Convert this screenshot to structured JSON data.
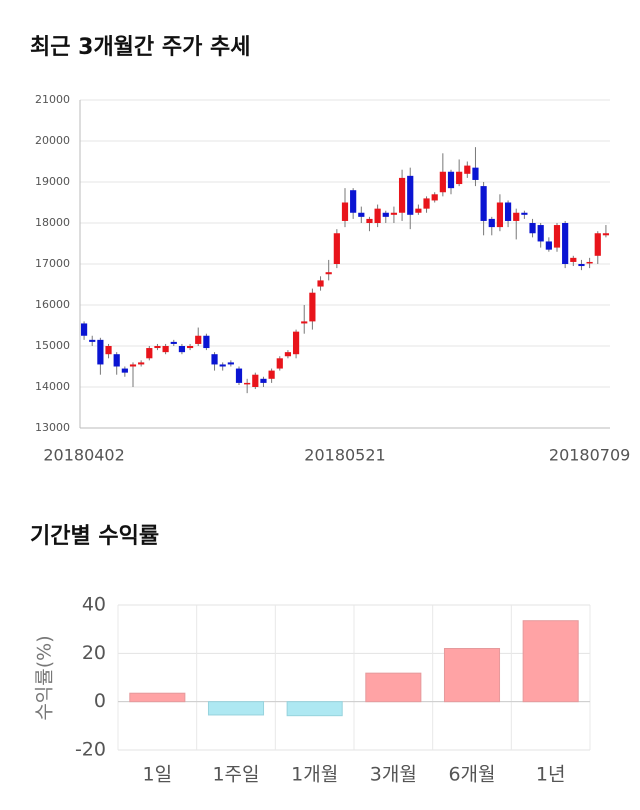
{
  "chart_data": [
    {
      "type": "candlestick",
      "title": "최근 3개월간 주가 추세",
      "categories": [
        "20180402",
        null,
        null,
        null,
        null,
        null,
        null,
        null,
        null,
        null,
        null,
        null,
        null,
        null,
        null,
        null,
        null,
        null,
        null,
        null,
        null,
        null,
        null,
        null,
        null,
        null,
        null,
        null,
        null,
        null,
        null,
        null,
        "20180521",
        null,
        null,
        null,
        null,
        null,
        null,
        null,
        null,
        null,
        null,
        null,
        null,
        null,
        null,
        null,
        null,
        null,
        null,
        null,
        null,
        null,
        null,
        null,
        null,
        null,
        null,
        null,
        null,
        null,
        "20180709",
        null,
        null
      ],
      "open": [
        15550,
        15150,
        15150,
        14800,
        14800,
        14450,
        14500,
        14550,
        14700,
        14950,
        14850,
        15100,
        15000,
        14950,
        15050,
        15250,
        14800,
        14550,
        14600,
        14450,
        14100,
        14000,
        14200,
        14200,
        14450,
        14750,
        14800,
        15550,
        15600,
        16450,
        16750,
        17000,
        18050,
        18800,
        18250,
        18000,
        18000,
        18250,
        18200,
        18250,
        19150,
        18250,
        18350,
        18550,
        18750,
        19250,
        18950,
        19200,
        19350,
        18900,
        18100,
        17900,
        18500,
        18050,
        18250,
        18000,
        17950,
        17550,
        17400,
        18000,
        17050,
        17000,
        17050,
        17200,
        17700
      ],
      "high": [
        15600,
        15250,
        15200,
        15050,
        14850,
        14500,
        14600,
        14650,
        15000,
        15050,
        15050,
        15150,
        15050,
        15050,
        15450,
        15300,
        14850,
        14600,
        14650,
        14500,
        14200,
        14350,
        14250,
        14450,
        14750,
        14900,
        15400,
        16000,
        16400,
        16700,
        17100,
        17850,
        18850,
        18850,
        18400,
        18150,
        18450,
        18300,
        18400,
        19300,
        19350,
        18450,
        18650,
        18750,
        19700,
        19300,
        19550,
        19500,
        19850,
        19000,
        18150,
        18700,
        18550,
        18350,
        18300,
        18100,
        18000,
        17650,
        18000,
        18050,
        17200,
        17100,
        17150,
        17800,
        17950
      ],
      "low": [
        15150,
        15000,
        14300,
        14700,
        14300,
        14250,
        14000,
        14500,
        14650,
        14900,
        14800,
        15000,
        14800,
        14900,
        15000,
        14900,
        14400,
        14400,
        14500,
        14050,
        13850,
        13950,
        14000,
        14100,
        14400,
        14700,
        14700,
        15300,
        15400,
        16350,
        16600,
        16900,
        17900,
        18100,
        18000,
        17800,
        17900,
        18000,
        18000,
        18050,
        17850,
        18200,
        18250,
        18500,
        18650,
        18700,
        18900,
        19100,
        18900,
        17700,
        17700,
        17800,
        17900,
        17600,
        18100,
        17650,
        17400,
        17300,
        17300,
        16900,
        16950,
        16850,
        16900,
        17000,
        17650
      ],
      "close": [
        15250,
        15100,
        14550,
        15000,
        14500,
        14350,
        14550,
        14600,
        14950,
        15000,
        15000,
        15050,
        14850,
        15000,
        15250,
        14950,
        14550,
        14500,
        14550,
        14100,
        14100,
        14300,
        14100,
        14400,
        14700,
        14850,
        15350,
        15600,
        16300,
        16600,
        16800,
        17750,
        18500,
        18250,
        18150,
        18100,
        18350,
        18150,
        18250,
        19100,
        18200,
        18350,
        18600,
        18700,
        19250,
        18850,
        19250,
        19400,
        19050,
        18050,
        17900,
        18500,
        18050,
        18250,
        18200,
        17750,
        17550,
        17350,
        17950,
        17000,
        17150,
        16950,
        17050,
        17750,
        17750
      ],
      "up_color": "#e8141b",
      "down_color": "#0a14d2",
      "ylim": [
        13000,
        21000
      ],
      "yticks": [
        13000,
        14000,
        15000,
        16000,
        17000,
        18000,
        19000,
        20000,
        21000
      ],
      "grid": true
    },
    {
      "type": "bar",
      "title": "기간별 수익률",
      "y_label": "수익률(%)",
      "categories": [
        "1일",
        "1주일",
        "1개월",
        "3개월",
        "6개월",
        "1년"
      ],
      "values": [
        3.5,
        -5.5,
        -5.8,
        11.8,
        22,
        33.5
      ],
      "positive_color": "#ffa3a5",
      "negative_color": "#aee8f2",
      "ylim": [
        -20,
        40
      ],
      "yticks": [
        -20,
        0,
        20,
        40
      ],
      "grid": true
    }
  ]
}
